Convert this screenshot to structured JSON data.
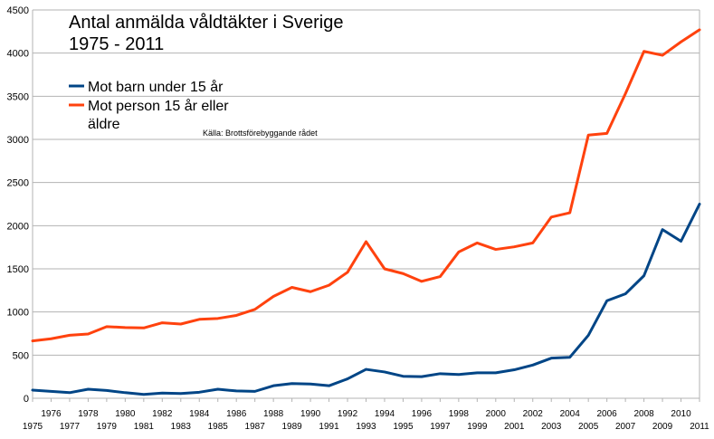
{
  "chart_data": {
    "type": "line",
    "title_line1": "Antal anmälda våldtäkter i Sverige",
    "title_line2": "1975 - 2011",
    "source": "Källa: Brottsförebyggande rådet",
    "x": [
      1975,
      1976,
      1977,
      1978,
      1979,
      1980,
      1981,
      1982,
      1983,
      1984,
      1985,
      1986,
      1987,
      1988,
      1989,
      1990,
      1991,
      1992,
      1993,
      1994,
      1995,
      1996,
      1997,
      1998,
      1999,
      2000,
      2001,
      2002,
      2003,
      2004,
      2005,
      2006,
      2007,
      2008,
      2009,
      2010,
      2011
    ],
    "xlim": [
      1975,
      2011
    ],
    "ylim": [
      0,
      4500
    ],
    "yticks": [
      0,
      500,
      1000,
      1500,
      2000,
      2500,
      3000,
      3500,
      4000,
      4500
    ],
    "grid": true,
    "legend_position": "top-left",
    "series": [
      {
        "name": "Mot barn under 15 år",
        "color": "#004586",
        "values": [
          95,
          80,
          65,
          105,
          90,
          65,
          45,
          60,
          55,
          70,
          105,
          85,
          80,
          145,
          170,
          165,
          145,
          225,
          335,
          305,
          255,
          250,
          285,
          275,
          295,
          295,
          330,
          385,
          465,
          475,
          730,
          1130,
          1210,
          1420,
          1955,
          1820,
          2250
        ]
      },
      {
        "name_line1": "Mot person 15 år eller",
        "name_line2": "äldre",
        "color": "#ff420e",
        "values": [
          665,
          690,
          730,
          745,
          830,
          820,
          815,
          875,
          860,
          915,
          925,
          960,
          1030,
          1180,
          1285,
          1235,
          1310,
          1460,
          1815,
          1500,
          1445,
          1355,
          1410,
          1695,
          1800,
          1725,
          1755,
          1800,
          2100,
          2150,
          3050,
          3070,
          3530,
          4020,
          3975,
          4130,
          4270
        ]
      }
    ]
  }
}
